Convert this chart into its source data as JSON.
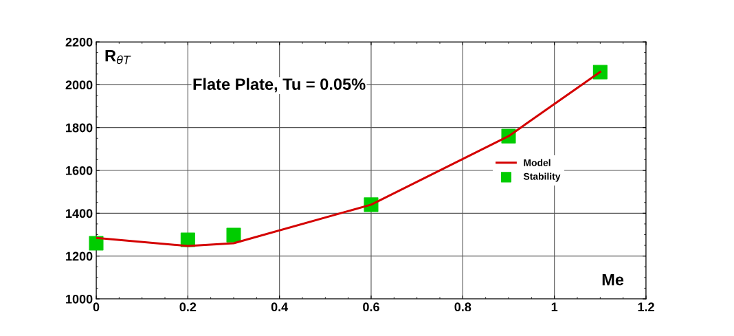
{
  "chart_data": {
    "type": "line",
    "xlabel": "Me",
    "ylabel": "R$_{θT}$",
    "annotations": [
      "Flate Plate, Tu = 0.05%"
    ],
    "series": [
      {
        "name": "Model",
        "color": "#d40000",
        "x": [
          0,
          0.2,
          0.3,
          0.6,
          0.9,
          1.1
        ],
        "values": [
          1285,
          1247,
          1260,
          1440,
          1760,
          2060
        ]
      },
      {
        "name": "Stability",
        "type": "scatter",
        "color": "#00cc00",
        "marker": "square",
        "x": [
          0,
          0.2,
          0.3,
          0.6,
          0.9,
          1.1
        ],
        "values": [
          1260,
          1276,
          1298,
          1440,
          1760,
          2059
        ]
      }
    ],
    "xlim": [
      0,
      1.2
    ],
    "xticks": [
      0,
      0.2,
      0.4,
      0.6,
      0.8,
      1,
      1.2
    ],
    "ylim": [
      1000,
      2200
    ],
    "yticks": [
      1000,
      1200,
      1400,
      1600,
      1800,
      2000,
      2200
    ],
    "grid": true,
    "legend": "right"
  }
}
